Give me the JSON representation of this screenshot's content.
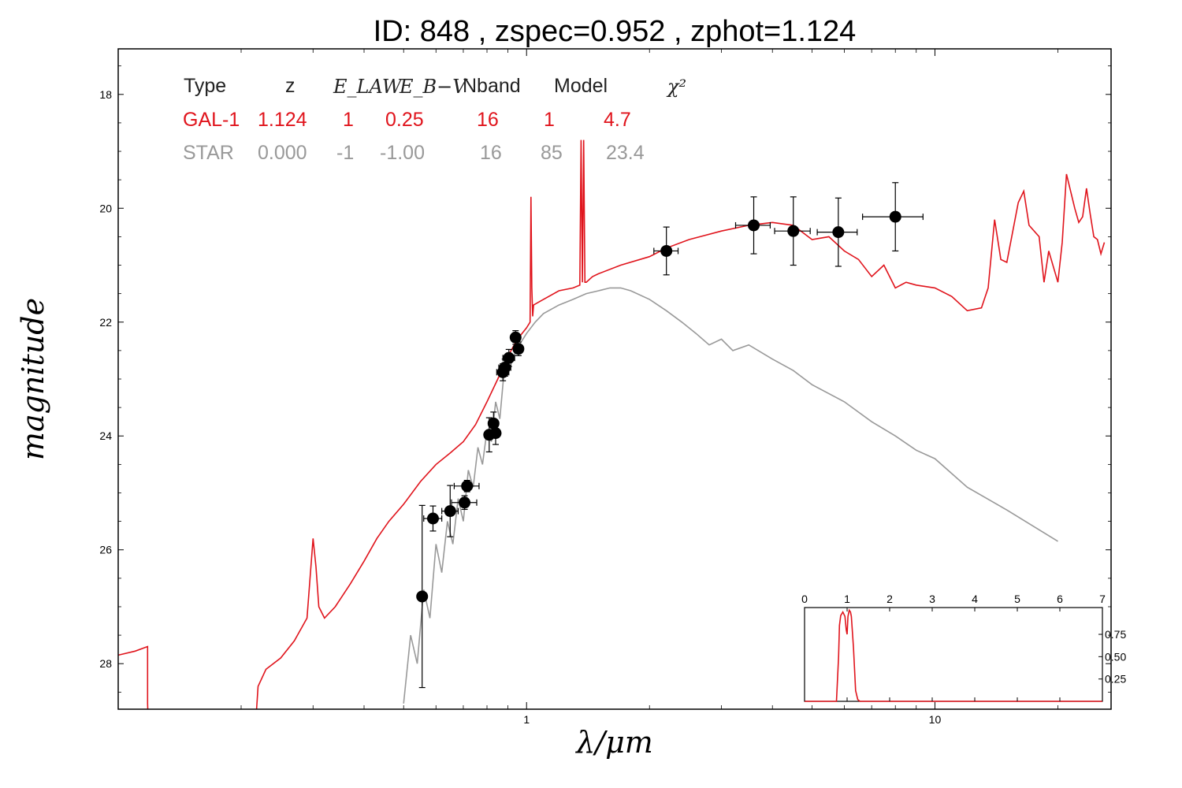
{
  "chart_data": [
    {
      "type": "scatter",
      "title": "ID:  848   , zspec=0.952 , zphot=1.124",
      "xlabel": "λ/μm",
      "ylabel": "magnitude",
      "xscale": "log",
      "xlim": [
        0.1,
        27
      ],
      "ylim": [
        28.8,
        17.2
      ],
      "x_tick_labels": [
        "1",
        "10"
      ],
      "x_tick_values": [
        1,
        10
      ],
      "y_tick_labels": [
        "18",
        "20",
        "22",
        "24",
        "26",
        "28"
      ],
      "y_tick_values": [
        18,
        20,
        22,
        24,
        26,
        28
      ],
      "legend": {
        "placement": "top-left",
        "headers": [
          "Type",
          "z",
          "E_LAW",
          "E_B−V",
          "Nband",
          "Model",
          "χ²"
        ],
        "rows": [
          {
            "type": "GAL-1",
            "z": "1.124",
            "elaw": "1",
            "ebv": "0.25",
            "nband": "16",
            "model": "1",
            "chi2": "4.7",
            "color": "#e0141c"
          },
          {
            "type": "STAR",
            "z": "0.000",
            "elaw": "-1",
            "ebv": "-1.00",
            "nband": "16",
            "model": "85",
            "chi2": "23.4",
            "color": "#999999"
          }
        ]
      },
      "photometry": [
        {
          "x": 0.555,
          "y": 26.82,
          "xerr": 0.01,
          "yerr": 1.6
        },
        {
          "x": 0.59,
          "y": 25.45,
          "xerr": 0.03,
          "yerr": 0.22
        },
        {
          "x": 0.65,
          "y": 25.32,
          "xerr": 0.03,
          "yerr": 0.45
        },
        {
          "x": 0.705,
          "y": 25.17,
          "xerr": 0.05,
          "yerr": 0.12
        },
        {
          "x": 0.715,
          "y": 24.88,
          "xerr": 0.05,
          "yerr": 0.1
        },
        {
          "x": 0.81,
          "y": 23.98,
          "xerr": 0.02,
          "yerr": 0.3
        },
        {
          "x": 0.83,
          "y": 23.78,
          "xerr": 0.02,
          "yerr": 0.2
        },
        {
          "x": 0.84,
          "y": 23.95,
          "xerr": 0.02,
          "yerr": 0.2
        },
        {
          "x": 0.875,
          "y": 22.88,
          "xerr": 0.03,
          "yerr": 0.15
        },
        {
          "x": 0.885,
          "y": 22.8,
          "xerr": 0.03,
          "yerr": 0.15
        },
        {
          "x": 0.905,
          "y": 22.63,
          "xerr": 0.03,
          "yerr": 0.15
        },
        {
          "x": 0.94,
          "y": 22.27,
          "xerr": 0.02,
          "yerr": 0.12
        },
        {
          "x": 0.955,
          "y": 22.47,
          "xerr": 0.02,
          "yerr": 0.12
        },
        {
          "x": 2.2,
          "y": 20.75,
          "xerr": 0.15,
          "yerr": 0.42
        },
        {
          "x": 3.6,
          "y": 20.3,
          "xerr": 0.35,
          "yerr": 0.5
        },
        {
          "x": 4.5,
          "y": 20.4,
          "xerr": 0.45,
          "yerr": 0.6
        },
        {
          "x": 5.8,
          "y": 20.42,
          "xerr": 0.65,
          "yerr": 0.6
        },
        {
          "x": 8.0,
          "y": 20.15,
          "xerr": 1.35,
          "yerr": 0.6
        }
      ],
      "series": [
        {
          "color": "#e0141c",
          "x": [
            0.1,
            0.11,
            0.118,
            0.118,
            0.119,
            0.124,
            0.135,
            0.215,
            0.22,
            0.23,
            0.25,
            0.27,
            0.29,
            0.3,
            0.305,
            0.31,
            0.32,
            0.34,
            0.37,
            0.4,
            0.43,
            0.46,
            0.5,
            0.55,
            0.6,
            0.65,
            0.7,
            0.75,
            0.8,
            0.85,
            0.9,
            0.95,
            1.0,
            1.02,
            1.025,
            1.03,
            1.035,
            1.04,
            1.1,
            1.2,
            1.3,
            1.35,
            1.36,
            1.37,
            1.38,
            1.39,
            1.4,
            1.45,
            1.5,
            1.7,
            2.0,
            2.2,
            2.5,
            3.0,
            3.5,
            4.0,
            4.5,
            5.0,
            5.5,
            6.0,
            6.5,
            7.0,
            7.5,
            8.0,
            8.5,
            9.0,
            10.0,
            11.0,
            12.0,
            13.0,
            13.5,
            14.0,
            14.5,
            15.0,
            16.0,
            16.5,
            17.0,
            18.0,
            18.5,
            19.0,
            20.0,
            20.5,
            21.0,
            22.0,
            22.5,
            23.0,
            23.5,
            24.0,
            24.5,
            25.0,
            25.5,
            26.0
          ],
          "y": [
            27.85,
            27.78,
            27.7,
            28.7,
            29.5,
            29.5,
            29.5,
            29.5,
            28.4,
            28.1,
            27.9,
            27.6,
            27.2,
            25.8,
            26.3,
            27.0,
            27.2,
            27.0,
            26.6,
            26.2,
            25.8,
            25.5,
            25.2,
            24.8,
            24.5,
            24.3,
            24.1,
            23.8,
            23.4,
            23.0,
            22.6,
            22.3,
            22.1,
            22.0,
            19.8,
            21.4,
            21.9,
            21.7,
            21.6,
            21.45,
            21.4,
            21.35,
            18.8,
            21.3,
            18.8,
            21.3,
            21.3,
            21.2,
            21.15,
            21.0,
            20.85,
            20.7,
            20.55,
            20.4,
            20.3,
            20.25,
            20.3,
            20.55,
            20.5,
            20.75,
            20.9,
            21.2,
            21.0,
            21.4,
            21.3,
            21.35,
            21.4,
            21.55,
            21.8,
            21.75,
            21.4,
            20.2,
            20.9,
            20.95,
            19.9,
            19.7,
            20.3,
            20.5,
            21.3,
            20.75,
            21.3,
            20.6,
            19.4,
            20.0,
            20.25,
            20.15,
            19.65,
            20.1,
            20.5,
            20.55,
            20.8,
            20.6
          ]
        },
        {
          "color": "#999999",
          "x": [
            0.5,
            0.52,
            0.54,
            0.56,
            0.58,
            0.6,
            0.62,
            0.64,
            0.66,
            0.68,
            0.7,
            0.72,
            0.74,
            0.76,
            0.78,
            0.8,
            0.82,
            0.84,
            0.86,
            0.88,
            0.9,
            0.93,
            0.96,
            1.0,
            1.05,
            1.1,
            1.2,
            1.3,
            1.4,
            1.5,
            1.6,
            1.7,
            1.8,
            2.0,
            2.2,
            2.4,
            2.6,
            2.8,
            3.0,
            3.2,
            3.5,
            4.0,
            4.5,
            5.0,
            6.0,
            7.0,
            8.0,
            9.0,
            10.0,
            12.0,
            15.0,
            20.0
          ],
          "y": [
            28.7,
            27.5,
            28.0,
            26.7,
            27.2,
            25.9,
            26.4,
            25.5,
            25.9,
            25.1,
            25.5,
            24.6,
            24.9,
            24.2,
            24.5,
            23.9,
            24.1,
            23.4,
            23.7,
            22.9,
            22.9,
            22.6,
            22.4,
            22.2,
            22.0,
            21.85,
            21.7,
            21.6,
            21.5,
            21.45,
            21.4,
            21.4,
            21.45,
            21.6,
            21.8,
            22.0,
            22.2,
            22.4,
            22.3,
            22.5,
            22.4,
            22.65,
            22.85,
            23.1,
            23.4,
            23.75,
            24.0,
            24.25,
            24.4,
            24.9,
            25.3,
            25.85
          ]
        }
      ]
    },
    {
      "type": "line",
      "name": "inset",
      "xlim": [
        0,
        7
      ],
      "ylim": [
        0,
        1.05
      ],
      "x_tick_labels": [
        "0",
        "1",
        "2",
        "3",
        "4",
        "5",
        "6",
        "7"
      ],
      "x_tick_values": [
        0,
        1,
        2,
        3,
        4,
        5,
        6,
        7
      ],
      "y_tick_labels": [
        "0.25",
        "0.50",
        "0.75"
      ],
      "y_tick_values": [
        0.25,
        0.5,
        0.75
      ],
      "series": [
        {
          "color": "#e0141c",
          "x": [
            0,
            0.75,
            0.8,
            0.82,
            0.85,
            0.9,
            0.95,
            0.98,
            1.0,
            1.02,
            1.05,
            1.08,
            1.1,
            1.15,
            1.2,
            1.25,
            1.3,
            7.0
          ],
          "y": [
            0,
            0,
            0.5,
            0.85,
            0.96,
            1.0,
            0.95,
            0.8,
            0.75,
            0.95,
            1.02,
            1.0,
            0.95,
            0.6,
            0.12,
            0.02,
            0,
            0
          ]
        }
      ]
    }
  ]
}
